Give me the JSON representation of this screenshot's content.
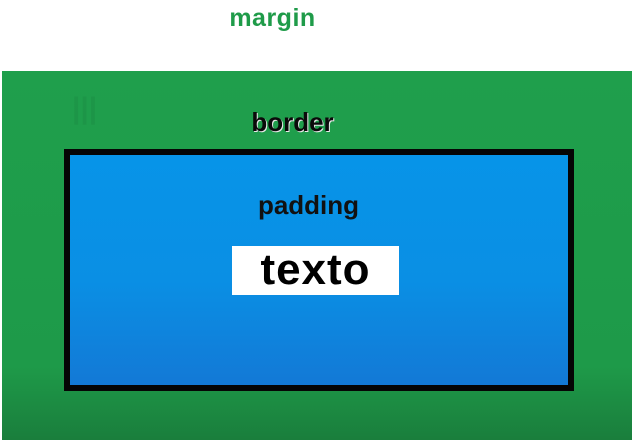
{
  "labels": {
    "margin": "margin",
    "border": "border",
    "padding": "padding",
    "content": "texto"
  },
  "colors": {
    "margin_label": "#1f9b49",
    "margin_area": "#1e9a49",
    "border": "#050505",
    "padding_area": "#0a8fe4",
    "content_background": "#ffffff",
    "text": "#000000"
  }
}
